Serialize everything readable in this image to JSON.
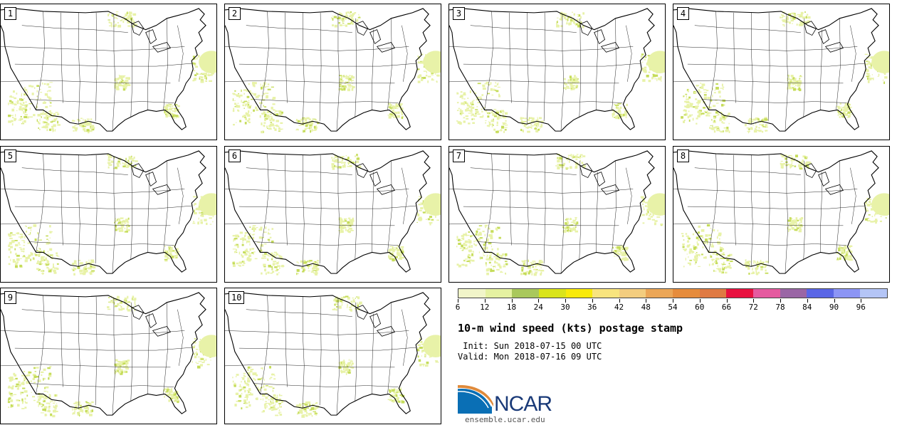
{
  "panels": [
    {
      "label": "1"
    },
    {
      "label": "2"
    },
    {
      "label": "3"
    },
    {
      "label": "4"
    },
    {
      "label": "5"
    },
    {
      "label": "6"
    },
    {
      "label": "7"
    },
    {
      "label": "8"
    },
    {
      "label": "9"
    },
    {
      "label": "10"
    }
  ],
  "colorbar": {
    "colors": [
      "#f1f5c9",
      "#e5f1a1",
      "#a9c85c",
      "#dae41a",
      "#f8ea0b",
      "#f8e47e",
      "#f3cd7f",
      "#eba657",
      "#e68c3c",
      "#df7a43",
      "#e8113f",
      "#e55a9f",
      "#9a66a5",
      "#5a66e6",
      "#8c95f5",
      "#b4c5f6"
    ],
    "ticks": [
      "6",
      "12",
      "18",
      "24",
      "30",
      "36",
      "42",
      "48",
      "54",
      "60",
      "66",
      "72",
      "78",
      "84",
      "90",
      "96"
    ]
  },
  "title": "10-m wind speed (kts) postage stamp",
  "init_line": " Init: Sun 2018-07-15 00 UTC",
  "valid_line": "Valid: Mon 2018-07-16 09 UTC",
  "logo": {
    "text": "NCAR",
    "url": "ensemble.ucar.edu"
  }
}
